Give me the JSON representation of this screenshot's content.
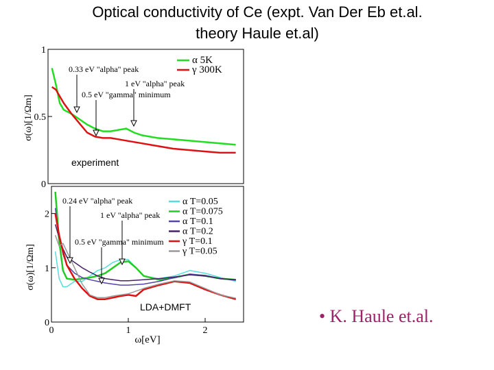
{
  "slide": {
    "title_line1": "Optical conductivity of Ce (expt. Van Der Eb et.al.",
    "title_line2": "theory Haule et.al)",
    "citation": "• K. Haule et.al."
  },
  "chart_data": [
    {
      "type": "line",
      "panel": "experiment",
      "inset_label": "experiment",
      "ylabel": "σ(ω)[1/Ωm]",
      "xlim": [
        0,
        2.5
      ],
      "ylim": [
        0,
        1
      ],
      "yticks": [
        "0",
        "0.5",
        "1"
      ],
      "grid": false,
      "legend_position": "top-right",
      "series": [
        {
          "name": "α 5K",
          "color": "#22dd22",
          "x": [
            0.05,
            0.1,
            0.15,
            0.2,
            0.3,
            0.4,
            0.5,
            0.6,
            0.7,
            0.8,
            0.9,
            1.0,
            1.1,
            1.2,
            1.4,
            1.6,
            1.8,
            2.0,
            2.2,
            2.4
          ],
          "y": [
            0.86,
            0.74,
            0.6,
            0.55,
            0.52,
            0.48,
            0.44,
            0.41,
            0.39,
            0.39,
            0.4,
            0.41,
            0.38,
            0.36,
            0.34,
            0.33,
            0.32,
            0.31,
            0.3,
            0.29
          ]
        },
        {
          "name": "γ 300K",
          "color": "#dd1111",
          "x": [
            0.05,
            0.1,
            0.15,
            0.2,
            0.3,
            0.4,
            0.5,
            0.6,
            0.7,
            0.8,
            0.9,
            1.0,
            1.2,
            1.4,
            1.6,
            1.8,
            2.0,
            2.2,
            2.4
          ],
          "y": [
            0.72,
            0.7,
            0.65,
            0.6,
            0.52,
            0.45,
            0.38,
            0.35,
            0.34,
            0.34,
            0.33,
            0.32,
            0.3,
            0.28,
            0.26,
            0.25,
            0.24,
            0.23,
            0.23
          ]
        }
      ],
      "annotations": [
        "0.33 eV \"alpha\" peak",
        "1 eV \"alpha\" peak",
        "0.5 eV \"gamma\" minimum"
      ]
    },
    {
      "type": "line",
      "panel": "theory",
      "inset_label": "LDA+DMFT",
      "xlabel": "ω[eV]",
      "ylabel": "σ(ω)[1/Ωm]",
      "xlim": [
        0,
        2.5
      ],
      "ylim": [
        0,
        2.5
      ],
      "xticks": [
        "0",
        "1",
        "2"
      ],
      "yticks": [
        "0",
        "1",
        "2"
      ],
      "grid": false,
      "legend_position": "top-right",
      "series": [
        {
          "name": "α T=0.05",
          "color": "#55dddd",
          "x": [
            0.05,
            0.1,
            0.15,
            0.2,
            0.3,
            0.4,
            0.5,
            0.6,
            0.7,
            0.8,
            0.9,
            1.0,
            1.1,
            1.2,
            1.4,
            1.6,
            1.8,
            2.0,
            2.2,
            2.4
          ],
          "y": [
            1.3,
            0.8,
            0.65,
            0.65,
            0.75,
            0.75,
            0.85,
            0.95,
            1.0,
            1.1,
            1.15,
            1.15,
            1.0,
            0.85,
            0.8,
            0.85,
            0.95,
            0.9,
            0.82,
            0.75
          ]
        },
        {
          "name": "α T=0.075",
          "color": "#22cc22",
          "x": [
            0.05,
            0.1,
            0.15,
            0.2,
            0.3,
            0.4,
            0.5,
            0.6,
            0.7,
            0.8,
            0.9,
            1.0,
            1.1,
            1.2,
            1.4,
            1.6,
            1.8,
            2.0,
            2.2,
            2.4
          ],
          "y": [
            2.4,
            1.5,
            0.95,
            0.8,
            0.78,
            0.8,
            0.82,
            0.85,
            0.9,
            1.0,
            1.1,
            1.12,
            1.0,
            0.85,
            0.78,
            0.82,
            0.88,
            0.85,
            0.8,
            0.78
          ]
        },
        {
          "name": "α T=0.1",
          "color": "#5544aa",
          "x": [
            0.05,
            0.1,
            0.15,
            0.2,
            0.3,
            0.4,
            0.5,
            0.6,
            0.7,
            0.8,
            0.9,
            1.0,
            1.2,
            1.4,
            1.6,
            1.8,
            2.0,
            2.2,
            2.4
          ],
          "y": [
            2.1,
            1.6,
            1.25,
            1.05,
            0.9,
            0.82,
            0.78,
            0.75,
            0.72,
            0.7,
            0.68,
            0.68,
            0.7,
            0.75,
            0.82,
            0.88,
            0.86,
            0.8,
            0.77
          ]
        },
        {
          "name": "α T=0.2",
          "color": "#442266",
          "x": [
            0.05,
            0.1,
            0.15,
            0.2,
            0.3,
            0.4,
            0.5,
            0.6,
            0.7,
            0.8,
            0.9,
            1.0,
            1.2,
            1.4,
            1.6,
            1.8,
            2.0,
            2.2,
            2.4
          ],
          "y": [
            1.8,
            1.55,
            1.35,
            1.2,
            1.1,
            1.0,
            0.92,
            0.85,
            0.8,
            0.78,
            0.76,
            0.76,
            0.78,
            0.8,
            0.83,
            0.87,
            0.85,
            0.8,
            0.78
          ]
        },
        {
          "name": "γ T=0.1",
          "color": "#dd1111",
          "x": [
            0.05,
            0.1,
            0.15,
            0.2,
            0.3,
            0.4,
            0.5,
            0.6,
            0.7,
            0.8,
            0.9,
            1.0,
            1.1,
            1.2,
            1.4,
            1.6,
            1.8,
            2.0,
            2.2,
            2.4
          ],
          "y": [
            2.0,
            1.6,
            1.3,
            1.05,
            0.8,
            0.62,
            0.48,
            0.42,
            0.42,
            0.45,
            0.48,
            0.5,
            0.48,
            0.6,
            0.68,
            0.75,
            0.72,
            0.6,
            0.5,
            0.42
          ]
        },
        {
          "name": "γ T=0.05",
          "color": "#999999",
          "x": [
            0.05,
            0.1,
            0.15,
            0.2,
            0.3,
            0.4,
            0.5,
            0.6,
            0.7,
            0.8,
            0.9,
            1.0,
            1.2,
            1.4,
            1.6,
            1.8,
            2.0,
            2.2,
            2.4
          ],
          "y": [
            1.6,
            1.4,
            1.45,
            1.3,
            1.0,
            0.7,
            0.5,
            0.45,
            0.45,
            0.48,
            0.5,
            0.52,
            0.62,
            0.7,
            0.76,
            0.74,
            0.62,
            0.5,
            0.44
          ]
        }
      ],
      "annotations": [
        "0.24 eV \"alpha\" peak",
        "1 eV \"alpha\" peak",
        "0.5 eV \"gamma\" minimum"
      ]
    }
  ]
}
